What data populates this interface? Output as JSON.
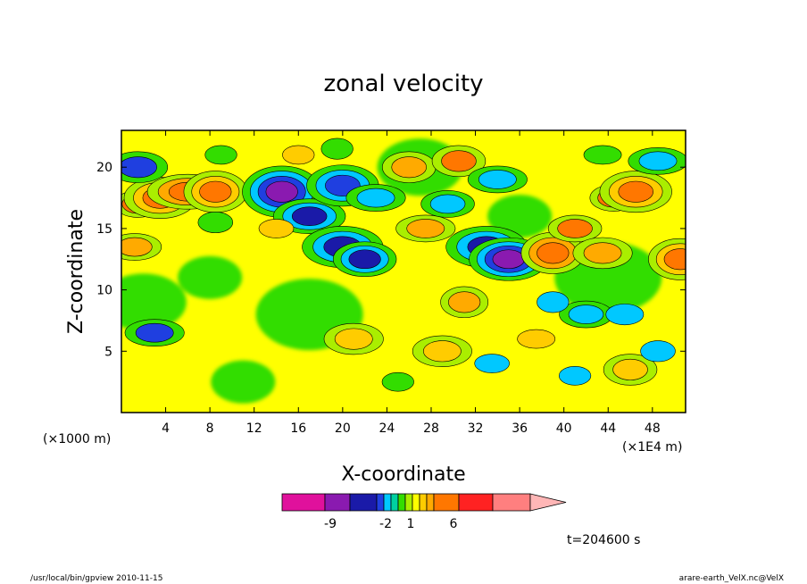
{
  "chart_data": {
    "type": "heatmap",
    "title": "zonal velocity",
    "xlabel": "X-coordinate",
    "ylabel": "Z-coordinate",
    "x_unit_left": "(×1000 m)",
    "x_unit_right": "(×1E4 m)",
    "x_ticks": [
      4,
      8,
      12,
      16,
      20,
      24,
      28,
      32,
      36,
      40,
      44,
      48
    ],
    "y_ticks": [
      5,
      10,
      15,
      20
    ],
    "xlim": [
      0,
      51
    ],
    "ylim": [
      0,
      23
    ],
    "grid": false,
    "colorbar": {
      "colors": [
        "#e0119c",
        "#8a1ab0",
        "#1a1aa8",
        "#1f3fe0",
        "#00c8ff",
        "#00d0a0",
        "#33dd00",
        "#aaee00",
        "#ffff00",
        "#ffcc00",
        "#ffaa00",
        "#ff7700",
        "#ff2222",
        "#ff7f7f",
        "#ffb6b6"
      ],
      "tick_labels": [
        "-9",
        "-2",
        "1",
        "6"
      ]
    },
    "time_label": "t=204600 s",
    "blobs": [
      {
        "x": 1.5,
        "z": 17,
        "v": 4
      },
      {
        "x": 3.5,
        "z": 17.5,
        "v": 5
      },
      {
        "x": 6,
        "z": 18,
        "v": 6
      },
      {
        "x": 8.5,
        "z": 18,
        "v": 5
      },
      {
        "x": 1.2,
        "z": 13.5,
        "v": 3
      },
      {
        "x": 1.5,
        "z": 20,
        "v": -4
      },
      {
        "x": 9,
        "z": 21,
        "v": -1
      },
      {
        "x": 8.5,
        "z": 15.5,
        "v": -1
      },
      {
        "x": 3,
        "z": 6.5,
        "v": -4
      },
      {
        "x": 14.5,
        "z": 18,
        "v": -8
      },
      {
        "x": 17,
        "z": 16,
        "v": -6
      },
      {
        "x": 20,
        "z": 13.5,
        "v": -6
      },
      {
        "x": 22,
        "z": 12.5,
        "v": -6
      },
      {
        "x": 20,
        "z": 18.5,
        "v": -5
      },
      {
        "x": 23,
        "z": 17.5,
        "v": -3
      },
      {
        "x": 19.5,
        "z": 21.5,
        "v": -1
      },
      {
        "x": 14,
        "z": 15,
        "v": 2
      },
      {
        "x": 21,
        "z": 6,
        "v": 2.5
      },
      {
        "x": 16,
        "z": 21,
        "v": 2
      },
      {
        "x": 26,
        "z": 20,
        "v": 3
      },
      {
        "x": 27.5,
        "z": 15,
        "v": 3
      },
      {
        "x": 31,
        "z": 9,
        "v": 3
      },
      {
        "x": 29.5,
        "z": 17,
        "v": -3
      },
      {
        "x": 33,
        "z": 13.5,
        "v": -6
      },
      {
        "x": 35,
        "z": 12.5,
        "v": -8
      },
      {
        "x": 30.5,
        "z": 20.5,
        "v": 4
      },
      {
        "x": 34,
        "z": 19,
        "v": -3
      },
      {
        "x": 39,
        "z": 13,
        "v": 6
      },
      {
        "x": 41,
        "z": 15,
        "v": 4
      },
      {
        "x": 43.5,
        "z": 13,
        "v": 3
      },
      {
        "x": 44.5,
        "z": 17.5,
        "v": 4
      },
      {
        "x": 46.5,
        "z": 18,
        "v": 5
      },
      {
        "x": 48.5,
        "z": 20.5,
        "v": -3
      },
      {
        "x": 50.5,
        "z": 12.5,
        "v": 5
      },
      {
        "x": 42,
        "z": 8,
        "v": -3
      },
      {
        "x": 45.5,
        "z": 8,
        "v": -2
      },
      {
        "x": 41,
        "z": 3,
        "v": -2
      },
      {
        "x": 46,
        "z": 3.5,
        "v": 2.5
      },
      {
        "x": 37.5,
        "z": 6,
        "v": 2
      },
      {
        "x": 39,
        "z": 9,
        "v": -2
      },
      {
        "x": 33.5,
        "z": 4,
        "v": -2
      },
      {
        "x": 29,
        "z": 5,
        "v": 2.5
      },
      {
        "x": 25,
        "z": 2.5,
        "v": -1
      },
      {
        "x": 48.5,
        "z": 5,
        "v": -2
      },
      {
        "x": 43.5,
        "z": 21,
        "v": -1
      }
    ]
  },
  "footer": {
    "left": "/usr/local/bin/gpview   2010-11-15",
    "right": "arare-earth_VelX.nc@VelX"
  }
}
